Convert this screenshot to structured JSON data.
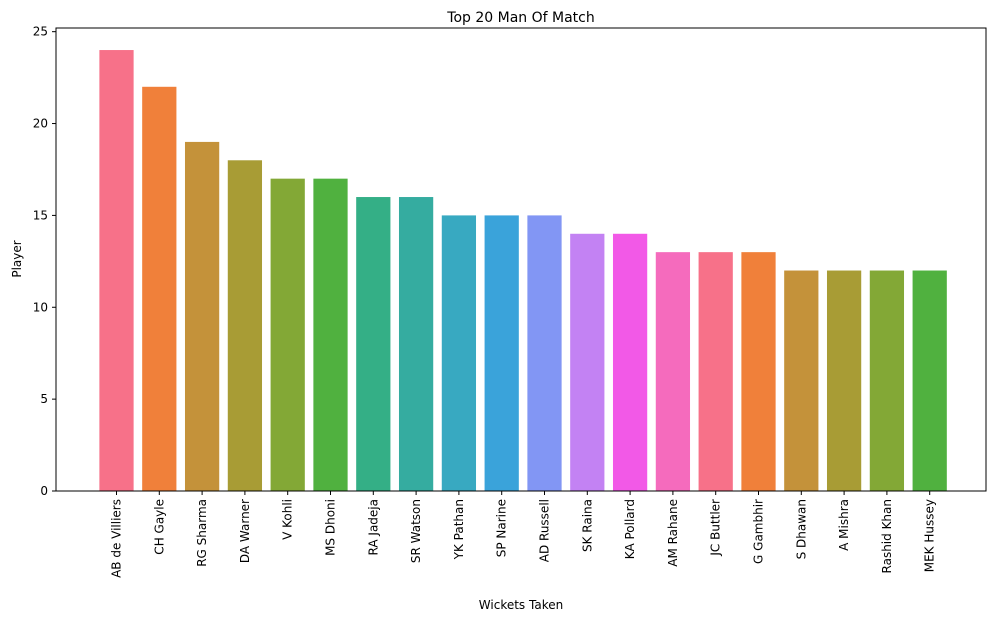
{
  "chart_data": {
    "type": "bar",
    "title": "Top 20 Man Of Match",
    "xlabel": "Wickets Taken",
    "ylabel": "Player",
    "ylim": [
      0,
      25.2
    ],
    "yticks": [
      0,
      5,
      10,
      15,
      20,
      25
    ],
    "grid": false,
    "categories": [
      "AB de Villiers",
      "CH Gayle",
      "RG Sharma",
      "DA Warner",
      "V Kohli",
      "MS Dhoni",
      "RA Jadeja",
      "SR Watson",
      "YK Pathan",
      "SP Narine",
      "AD Russell",
      "SK Raina",
      "KA Pollard",
      "AM Rahane",
      "JC Buttler",
      "G Gambhir",
      "S Dhawan",
      "A Mishra",
      "Rashid Khan",
      "MEK Hussey"
    ],
    "values": [
      24,
      22,
      19,
      18,
      17,
      17,
      16,
      16,
      15,
      15,
      15,
      14,
      14,
      13,
      13,
      13,
      12,
      12,
      12,
      12
    ],
    "colors": [
      "#f77189",
      "#f0803a",
      "#c4923a",
      "#a89c35",
      "#83a836",
      "#50b13f",
      "#34af86",
      "#35aca0",
      "#38a9c1",
      "#3aa3da",
      "#8296f4",
      "#c382f3",
      "#f259e7",
      "#f56bbd",
      "#f77189",
      "#f0803a",
      "#c4923a",
      "#a89c35",
      "#83a836",
      "#50b13f"
    ]
  }
}
